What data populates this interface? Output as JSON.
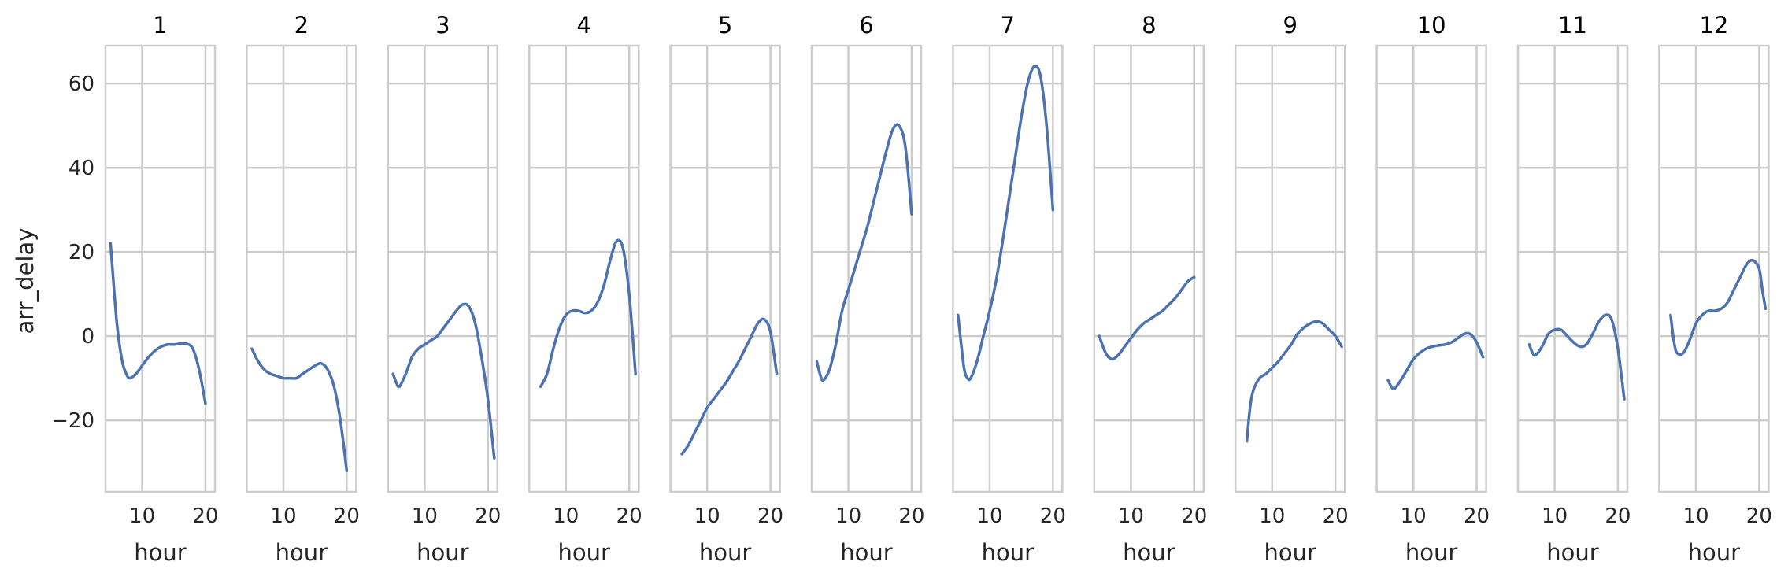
{
  "chart_data": {
    "type": "line",
    "ylabel": "arr_delay",
    "xlabel": "hour",
    "ylim": [
      -37,
      69
    ],
    "yticks": [
      -20,
      0,
      20,
      40,
      60
    ],
    "ytick_labels": [
      "−20",
      "0",
      "20",
      "40",
      "60"
    ],
    "xticks": [
      10,
      20
    ],
    "xtick_labels": [
      "10",
      "20"
    ],
    "grid": true,
    "line_color": "#4c72b0",
    "panels": [
      {
        "title": "1",
        "xlim": [
          4.2,
          21.5
        ],
        "x": [
          5,
          5.5,
          6,
          6.5,
          7,
          7.5,
          8,
          9,
          10,
          11,
          12,
          13,
          14,
          15,
          16,
          17,
          18,
          19,
          20
        ],
        "y": [
          22,
          12,
          3,
          -3,
          -7,
          -9,
          -10,
          -9,
          -7,
          -5,
          -3.5,
          -2.5,
          -2,
          -2,
          -1.8,
          -1.8,
          -3,
          -8,
          -16
        ]
      },
      {
        "title": "2",
        "xlim": [
          4.2,
          21.5
        ],
        "x": [
          5,
          6,
          7,
          8,
          9,
          10,
          11,
          12,
          13,
          14,
          15,
          16,
          17,
          18,
          19,
          20
        ],
        "y": [
          -3,
          -6,
          -8,
          -9,
          -9.5,
          -10,
          -10,
          -10,
          -9,
          -8,
          -7,
          -6.5,
          -8,
          -12,
          -20,
          -32
        ]
      },
      {
        "title": "3",
        "xlim": [
          4.2,
          21.5
        ],
        "x": [
          5,
          5.5,
          6,
          7,
          8,
          9,
          10,
          11,
          12,
          13,
          14,
          15,
          16,
          17,
          18,
          19,
          20,
          21
        ],
        "y": [
          -9,
          -11,
          -12,
          -9,
          -5,
          -3,
          -2,
          -1,
          0,
          2,
          4,
          6,
          7.5,
          7,
          3,
          -5,
          -15,
          -29
        ]
      },
      {
        "title": "4",
        "xlim": [
          4.2,
          21.5
        ],
        "x": [
          6,
          7,
          8,
          9,
          10,
          11,
          12,
          13,
          14,
          15,
          16,
          17,
          18,
          19,
          20,
          21
        ],
        "y": [
          -12,
          -9,
          -3,
          2,
          5,
          6,
          6,
          5.5,
          6,
          8,
          12,
          18,
          22.5,
          21,
          10,
          -9
        ]
      },
      {
        "title": "5",
        "xlim": [
          4.2,
          21.5
        ],
        "x": [
          6,
          7,
          8,
          9,
          10,
          11,
          12,
          13,
          14,
          15,
          16,
          17,
          18,
          19,
          20,
          21
        ],
        "y": [
          -28,
          -26,
          -23,
          -20,
          -17,
          -15,
          -13,
          -11,
          -8.5,
          -6,
          -3,
          0,
          3,
          4,
          1,
          -9
        ]
      },
      {
        "title": "6",
        "xlim": [
          4.2,
          21.5
        ],
        "x": [
          5,
          5.5,
          6,
          7,
          8,
          9,
          10,
          11,
          12,
          13,
          14,
          15,
          16,
          17,
          18,
          19,
          20
        ],
        "y": [
          -6,
          -9,
          -10.5,
          -8,
          -2,
          6,
          11,
          16,
          21,
          26,
          32,
          38,
          44,
          49,
          50,
          45,
          29
        ]
      },
      {
        "title": "7",
        "xlim": [
          4.2,
          21.5
        ],
        "x": [
          5,
          5.5,
          6,
          6.5,
          7,
          8,
          9,
          10,
          11,
          12,
          13,
          14,
          15,
          16,
          17,
          18,
          19,
          20
        ],
        "y": [
          5,
          -2,
          -8,
          -10,
          -10,
          -6,
          0,
          6,
          13,
          22,
          32,
          42,
          52,
          60,
          64,
          62,
          50,
          30
        ]
      },
      {
        "title": "8",
        "xlim": [
          4.2,
          21.5
        ],
        "x": [
          5,
          6,
          7,
          8,
          9,
          10,
          11,
          12,
          13,
          14,
          15,
          16,
          17,
          18,
          19,
          20
        ],
        "y": [
          0,
          -4,
          -5.5,
          -4.5,
          -2.5,
          -0.5,
          1.5,
          3,
          4,
          5,
          6,
          7.5,
          9,
          11,
          13,
          14
        ]
      },
      {
        "title": "9",
        "xlim": [
          4.2,
          21.5
        ],
        "x": [
          6,
          6.5,
          7,
          8,
          9,
          10,
          11,
          12,
          13,
          14,
          15,
          16,
          17,
          18,
          19,
          20,
          21
        ],
        "y": [
          -25,
          -17,
          -13,
          -10,
          -9,
          -7.5,
          -6,
          -4,
          -2,
          0.5,
          2,
          3,
          3.5,
          3,
          1.5,
          0,
          -2.5
        ]
      },
      {
        "title": "10",
        "xlim": [
          4.2,
          21.5
        ],
        "x": [
          6,
          6.5,
          7,
          8,
          9,
          10,
          11,
          12,
          13,
          14,
          15,
          16,
          17,
          18,
          19,
          20,
          21
        ],
        "y": [
          -10.5,
          -12,
          -12.5,
          -10.5,
          -8,
          -5.5,
          -4,
          -3,
          -2.5,
          -2.2,
          -2,
          -1.5,
          -0.5,
          0.5,
          0.5,
          -1.5,
          -5
        ]
      },
      {
        "title": "11",
        "xlim": [
          4.2,
          21.5
        ],
        "x": [
          6,
          6.5,
          7,
          8,
          9,
          10,
          11,
          12,
          13,
          14,
          15,
          16,
          17,
          18,
          19,
          20,
          21
        ],
        "y": [
          -2,
          -4,
          -4.5,
          -2.5,
          0.5,
          1.5,
          1.5,
          0,
          -1.5,
          -2.5,
          -2,
          0.5,
          3.5,
          5,
          4,
          -3,
          -15
        ]
      },
      {
        "title": "12",
        "xlim": [
          4.2,
          21.5
        ],
        "x": [
          6,
          6.5,
          7,
          8,
          9,
          10,
          11,
          12,
          13,
          14,
          15,
          16,
          17,
          18,
          19,
          20,
          20.5,
          21
        ],
        "y": [
          5,
          -1,
          -4,
          -4,
          -1,
          3,
          5,
          6,
          6,
          6.5,
          8,
          11,
          14,
          17,
          18,
          16,
          11,
          6.5
        ]
      }
    ]
  }
}
